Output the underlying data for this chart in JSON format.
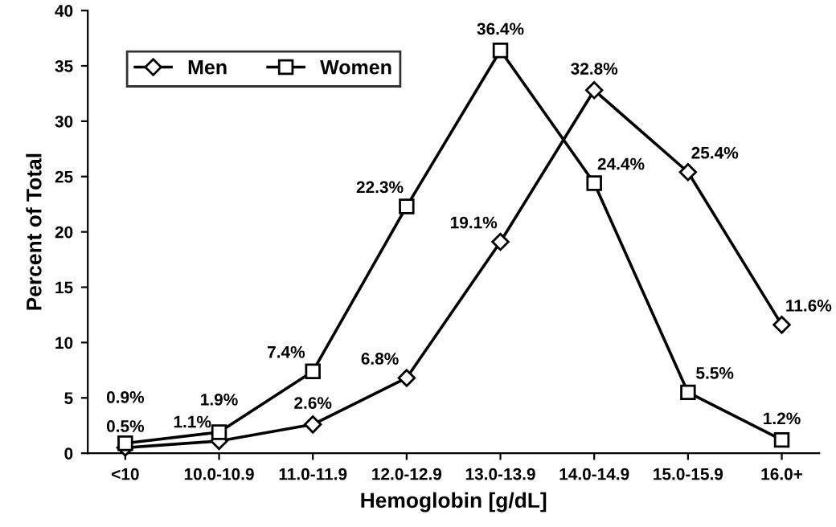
{
  "chart_data": {
    "type": "line",
    "xlabel": "Hemoglobin [g/dL]",
    "ylabel": "Percent of Total",
    "categories": [
      "<10",
      "10.0-10.9",
      "11.0-11.9",
      "12.0-12.9",
      "13.0-13.9",
      "14.0-14.9",
      "15.0-15.9",
      "16.0+"
    ],
    "series": [
      {
        "name": "Men",
        "color": "#000000",
        "marker": "diamond",
        "values": [
          0.5,
          1.1,
          2.6,
          6.8,
          19.1,
          32.8,
          25.4,
          11.6
        ],
        "value_labels": [
          "0.5%",
          "1.1%",
          "2.6%",
          "6.8%",
          "19.1%",
          "32.8%",
          "25.4%",
          "11.6%"
        ]
      },
      {
        "name": "Women",
        "color": "#000000",
        "marker": "square",
        "values": [
          0.9,
          1.9,
          7.4,
          22.3,
          36.4,
          24.4,
          5.5,
          1.2
        ],
        "value_labels": [
          "0.9%",
          "1.9%",
          "7.4%",
          "22.3%",
          "36.4%",
          "24.4%",
          "5.5%",
          "1.2%"
        ]
      }
    ],
    "ylim": [
      0,
      40
    ],
    "yticks": [
      0,
      5,
      10,
      15,
      20,
      25,
      30,
      35,
      40
    ],
    "grid": false,
    "legend": "top left",
    "line_style": "solid"
  }
}
